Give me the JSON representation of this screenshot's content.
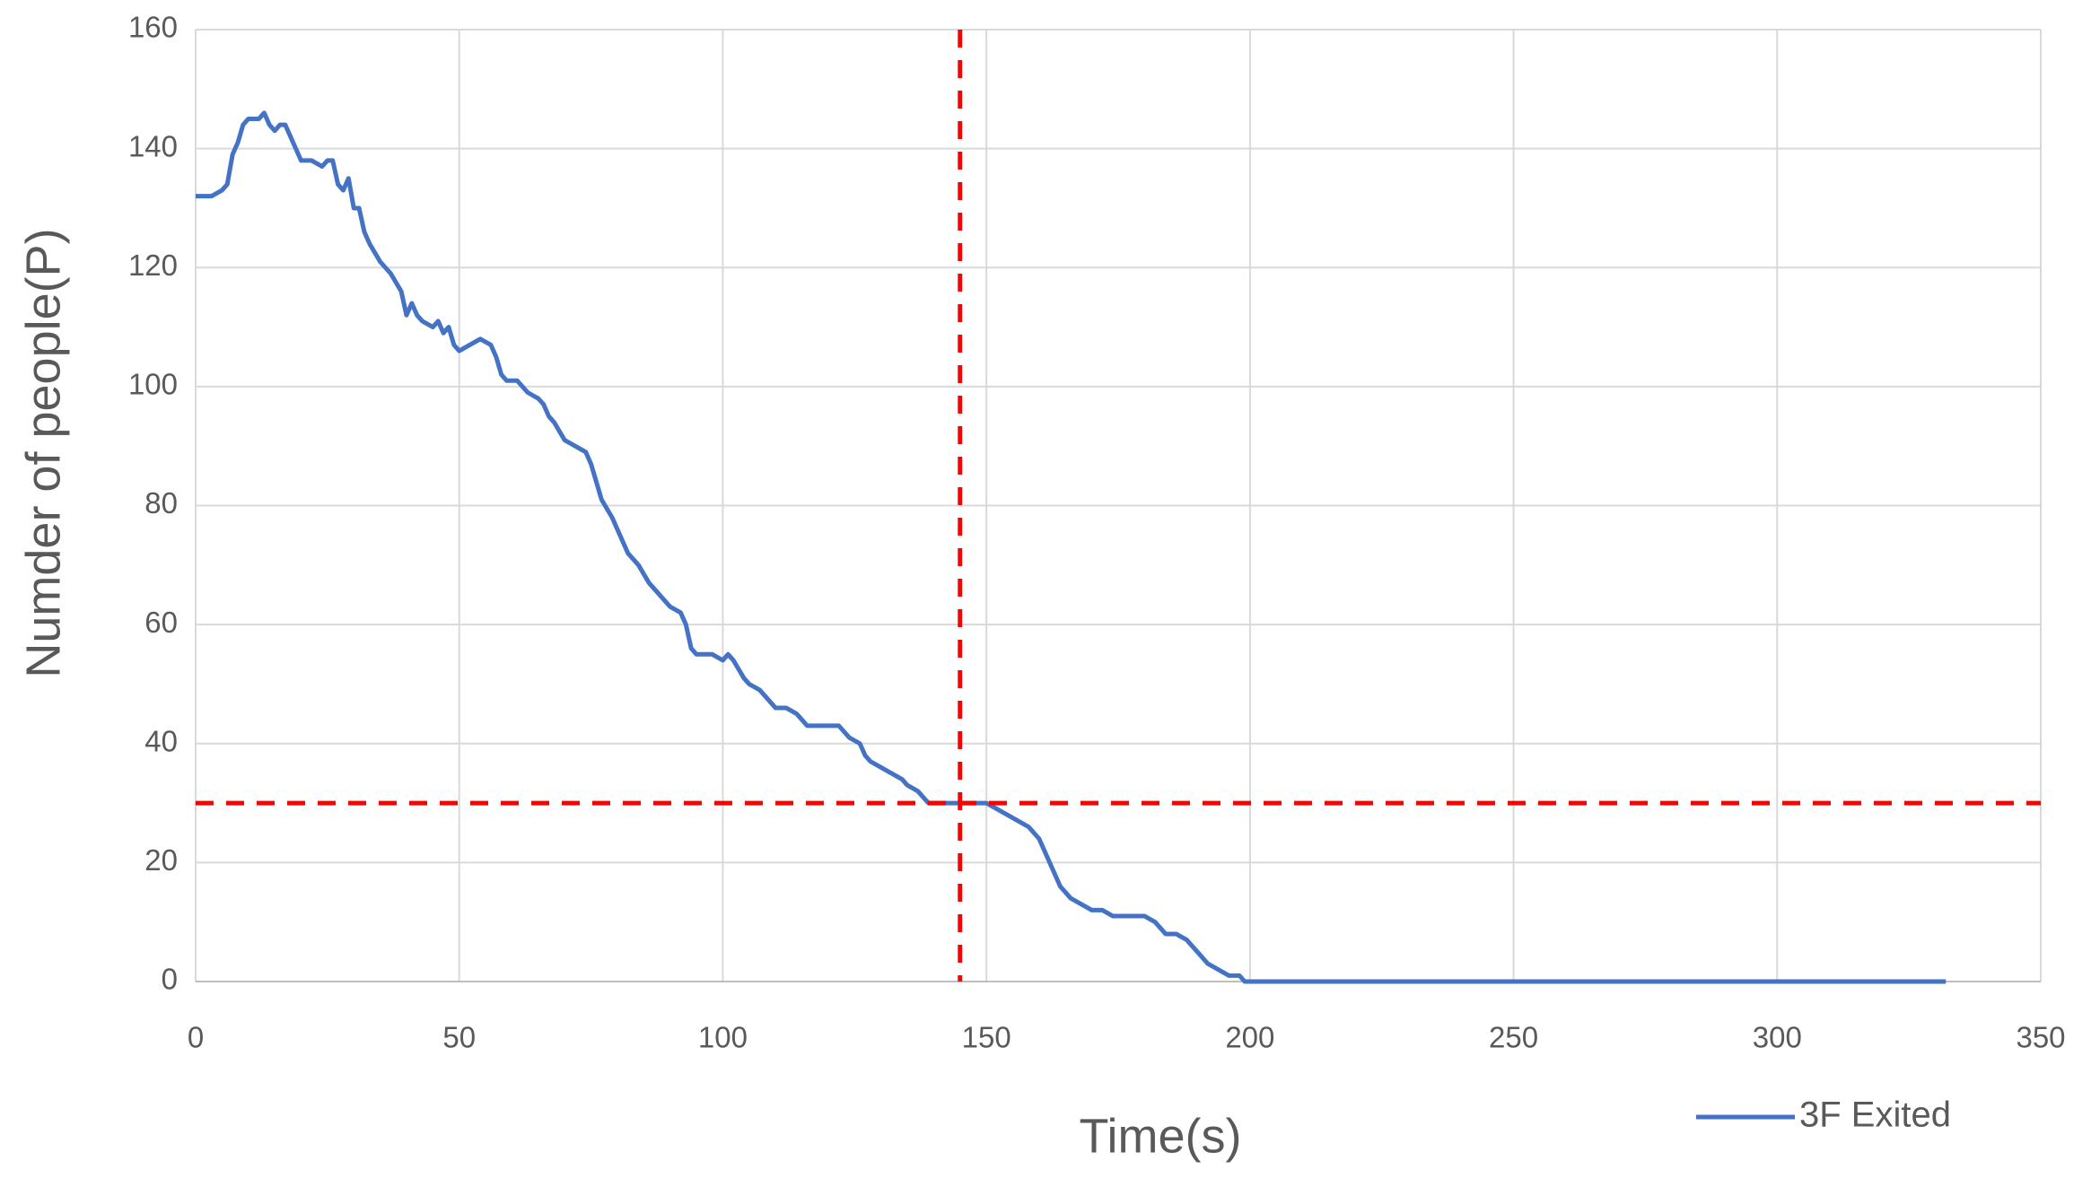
{
  "chart_data": {
    "type": "line",
    "x_label": "Time(s)",
    "y_label": "Numder of people(P)",
    "x": [
      0,
      3,
      5,
      6,
      7,
      8,
      9,
      10,
      12,
      13,
      14,
      15,
      16,
      17,
      18,
      20,
      22,
      24,
      25,
      26,
      27,
      28,
      29,
      30,
      31,
      32,
      33,
      35,
      37,
      39,
      40,
      41,
      42,
      43,
      45,
      46,
      47,
      48,
      49,
      50,
      52,
      54,
      56,
      57,
      58,
      59,
      61,
      63,
      65,
      66,
      67,
      68,
      70,
      72,
      74,
      75,
      76,
      77,
      79,
      80,
      81,
      82,
      84,
      86,
      88,
      90,
      92,
      93,
      94,
      95,
      98,
      100,
      101,
      102,
      104,
      105,
      107,
      110,
      112,
      114,
      116,
      118,
      120,
      122,
      124,
      126,
      127,
      128,
      130,
      132,
      134,
      135,
      137,
      138,
      139,
      141,
      145,
      150,
      152,
      154,
      156,
      158,
      160,
      161,
      162,
      163,
      164,
      165,
      166,
      168,
      170,
      172,
      174,
      176,
      180,
      182,
      184,
      186,
      188,
      189,
      190,
      192,
      194,
      196,
      198,
      199,
      210,
      250,
      332
    ],
    "series": [
      {
        "name": "3F Exited",
        "color": "#4472c4",
        "values": [
          132,
          132,
          133,
          134,
          139,
          141,
          144,
          145,
          145,
          146,
          144,
          143,
          144,
          144,
          142,
          138,
          138,
          137,
          138,
          138,
          134,
          133,
          135,
          130,
          130,
          126,
          124,
          121,
          119,
          116,
          112,
          114,
          112,
          111,
          110,
          111,
          109,
          110,
          107,
          106,
          107,
          108,
          107,
          105,
          102,
          101,
          101,
          99,
          98,
          97,
          95,
          94,
          91,
          90,
          89,
          87,
          84,
          81,
          78,
          76,
          74,
          72,
          70,
          67,
          65,
          63,
          62,
          60,
          56,
          55,
          55,
          54,
          55,
          54,
          51,
          50,
          49,
          46,
          46,
          45,
          43,
          43,
          43,
          43,
          41,
          40,
          38,
          37,
          36,
          35,
          34,
          33,
          32,
          31,
          30,
          30,
          30,
          30,
          29,
          28,
          27,
          26,
          24,
          22,
          20,
          18,
          16,
          15,
          14,
          13,
          12,
          12,
          11,
          11,
          11,
          10,
          8,
          8,
          7,
          6,
          5,
          3,
          2,
          1,
          1,
          0,
          0,
          0,
          0
        ]
      }
    ],
    "reference_lines": [
      {
        "axis": "x",
        "value": 145
      },
      {
        "axis": "y",
        "value": 30
      }
    ],
    "reference_color": "#ff0000",
    "xlim": [
      0,
      350
    ],
    "xticks": [
      0,
      50,
      100,
      150,
      200,
      250,
      300,
      350
    ],
    "ylim": [
      0,
      160
    ],
    "yticks": [
      0,
      20,
      40,
      60,
      80,
      100,
      120,
      140,
      160
    ],
    "grid": true,
    "legend": "bottom-right"
  }
}
